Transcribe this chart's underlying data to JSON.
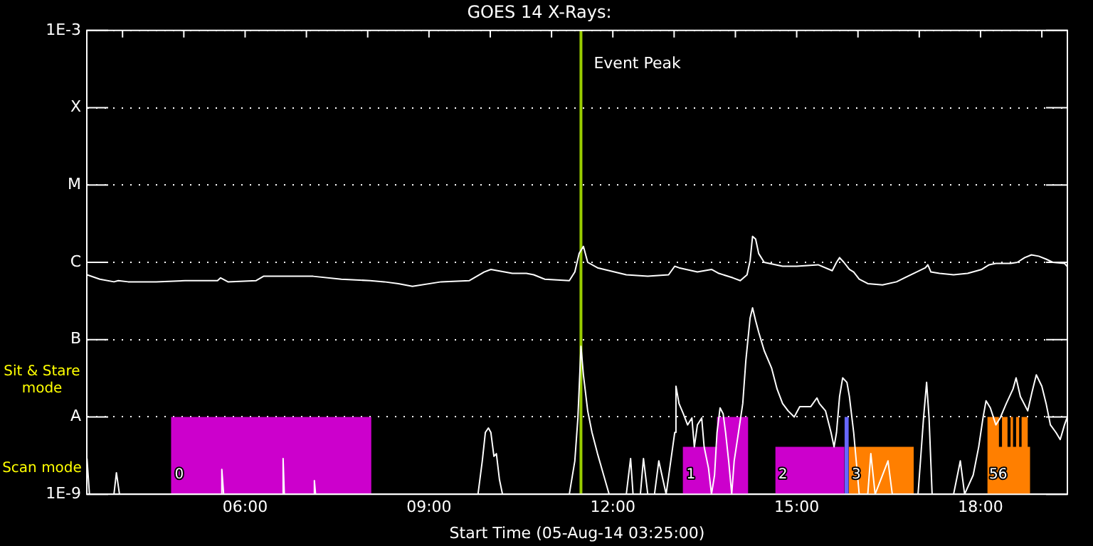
{
  "chart_data": {
    "type": "line",
    "title": "GOES 14 X-Rays:",
    "xlabel": "Start Time (05-Aug-14 03:25:00)",
    "xlim": [
      3.417,
      19.417
    ],
    "xticks": [
      {
        "value": 4,
        "label": null
      },
      {
        "value": 5,
        "label": null
      },
      {
        "value": 6,
        "label": "06:00"
      },
      {
        "value": 7,
        "label": null
      },
      {
        "value": 8,
        "label": null
      },
      {
        "value": 9,
        "label": "09:00"
      },
      {
        "value": 10,
        "label": null
      },
      {
        "value": 11,
        "label": null
      },
      {
        "value": 12,
        "label": "12:00"
      },
      {
        "value": 13,
        "label": null
      },
      {
        "value": 14,
        "label": null
      },
      {
        "value": 15,
        "label": "15:00"
      },
      {
        "value": 16,
        "label": null
      },
      {
        "value": 17,
        "label": null
      },
      {
        "value": 18,
        "label": "18:00"
      },
      {
        "value": 19,
        "label": null
      }
    ],
    "ylim": [
      1e-09,
      0.001
    ],
    "yticks": [
      {
        "value": 1e-09,
        "label": "1E-9"
      },
      {
        "value": 1e-08,
        "label": "A"
      },
      {
        "value": 1e-07,
        "label": "B"
      },
      {
        "value": 1e-06,
        "label": "C"
      },
      {
        "value": 1e-05,
        "label": "M"
      },
      {
        "value": 0.0001,
        "label": "X"
      },
      {
        "value": 0.001,
        "label": "1E-3"
      }
    ],
    "log": "y",
    "grid": "y",
    "ref_lines": [
      {
        "axis": "x",
        "value": 11.48,
        "label": "Event Peak",
        "color": "#99cc00"
      }
    ],
    "annotations": [
      "Sit & Stare mode",
      "Scan mode",
      {
        "text": "0",
        "x": 4.85,
        "y": 1.8e-09
      },
      {
        "text": "1",
        "x": 13.2,
        "y": 1.8e-09
      },
      {
        "text": "2",
        "x": 14.7,
        "y": 1.8e-09
      },
      {
        "text": "3",
        "x": 15.9,
        "y": 1.8e-09
      },
      {
        "text": "56",
        "x": 18.14,
        "y": 1.8e-09
      }
    ],
    "series": [
      {
        "type": "area",
        "color": "#cc00cc",
        "x": [
          4.79,
          8.06
        ],
        "values": [
          1e-08,
          1e-08
        ]
      },
      {
        "type": "area",
        "color": "#cc00cc",
        "x": [
          13.14,
          13.7,
          13.7,
          14.21
        ],
        "values": [
          4.1e-09,
          4.1e-09,
          1e-08,
          1e-08
        ]
      },
      {
        "type": "area",
        "color": "#cc00cc",
        "x": [
          14.65,
          15.78
        ],
        "values": [
          4.1e-09,
          4.1e-09
        ]
      },
      {
        "type": "area",
        "color": "#6666ff",
        "x": [
          15.78,
          15.85
        ],
        "values": [
          1e-08,
          1e-08
        ]
      },
      {
        "type": "area",
        "color": "#ff7f00",
        "x": [
          15.85,
          16.91
        ],
        "values": [
          4.1e-09,
          4.1e-09
        ]
      },
      {
        "type": "area",
        "color": "#ff7f00",
        "x": [
          18.11,
          18.3,
          18.3,
          18.35,
          18.35,
          18.44,
          18.44,
          18.49,
          18.49,
          18.53,
          18.53,
          18.58,
          18.58,
          18.63,
          18.63,
          18.67,
          18.67,
          18.77,
          18.77,
          18.81
        ],
        "values": [
          1e-08,
          1e-08,
          4.1e-09,
          4.1e-09,
          1e-08,
          1e-08,
          4.1e-09,
          4.1e-09,
          1e-08,
          1e-08,
          4.1e-09,
          4.1e-09,
          1e-08,
          1e-08,
          4.1e-09,
          4.1e-09,
          1e-08,
          1e-08,
          4.1e-09,
          4.1e-09
        ]
      },
      {
        "type": "line",
        "color": "#ffffff",
        "x": [
          3.42,
          3.63,
          3.86,
          3.93,
          4.09,
          4.55,
          5.02,
          5.55,
          5.6,
          5.72,
          6.18,
          6.3,
          6.64,
          7.11,
          7.57,
          8.04,
          8.27,
          8.5,
          8.73,
          9.2,
          9.66,
          9.9,
          10.01,
          10.36,
          10.59,
          10.71,
          10.89,
          11.29,
          11.38,
          11.45,
          11.52,
          11.59,
          11.75,
          12.22,
          12.57,
          12.91,
          13.01,
          13.08,
          13.38,
          13.61,
          13.73,
          13.96,
          14.08,
          14.19,
          14.24,
          14.28,
          14.33,
          14.38,
          14.47,
          14.77,
          15.0,
          15.35,
          15.58,
          15.65,
          15.7,
          15.77,
          15.86,
          15.93,
          16.02,
          16.16,
          16.4,
          16.63,
          16.86,
          17.1,
          17.14,
          17.19,
          17.33,
          17.56,
          17.79,
          18.02,
          18.14,
          18.25,
          18.49,
          18.6,
          18.72,
          18.83,
          18.95,
          19.07,
          19.18,
          19.37,
          19.41
        ],
        "values": [
          6.9e-07,
          6.05e-07,
          5.6e-07,
          5.8e-07,
          5.6e-07,
          5.6e-07,
          5.8e-07,
          5.8e-07,
          6.3e-07,
          5.6e-07,
          5.8e-07,
          6.6e-07,
          6.6e-07,
          6.6e-07,
          6.05e-07,
          5.8e-07,
          5.6e-07,
          5.3e-07,
          4.9e-07,
          5.6e-07,
          5.8e-07,
          7.5e-07,
          8.1e-07,
          7.2e-07,
          7.2e-07,
          6.9e-07,
          6.05e-07,
          5.8e-07,
          7.5e-07,
          1.3e-06,
          1.61e-06,
          1e-06,
          8.5e-07,
          6.9e-07,
          6.6e-07,
          6.9e-07,
          8.9e-07,
          8.5e-07,
          7.5e-07,
          8.1e-07,
          7.2e-07,
          6.3e-07,
          5.8e-07,
          6.9e-07,
          1.05e-06,
          2.17e-06,
          2e-06,
          1.3e-06,
          1e-06,
          8.9e-07,
          8.9e-07,
          9.3e-07,
          7.8e-07,
          1e-06,
          1.15e-06,
          1e-06,
          8.1e-07,
          7.5e-07,
          6.05e-07,
          5.3e-07,
          5.1e-07,
          5.6e-07,
          6.9e-07,
          8.5e-07,
          9.3e-07,
          7.5e-07,
          7.2e-07,
          6.9e-07,
          7.2e-07,
          8.1e-07,
          9.3e-07,
          9.7e-07,
          9.7e-07,
          1e-06,
          1.15e-06,
          1.25e-06,
          1.2e-06,
          1.1e-06,
          1e-06,
          9.7e-07,
          8.9e-07
        ]
      },
      {
        "type": "line",
        "color": "#ffffff",
        "x": [
          3.42,
          3.46,
          3.86,
          3.9,
          3.95,
          5.6,
          5.62,
          5.65,
          6.6,
          6.62,
          6.64,
          7.11,
          7.13,
          7.15,
          9.8,
          9.87,
          9.92,
          9.97,
          10.01,
          10.06,
          10.1,
          10.15,
          10.2,
          11.29,
          11.38,
          11.43,
          11.48,
          11.52,
          11.59,
          11.66,
          11.75,
          11.85,
          11.94,
          12.22,
          12.29,
          12.33,
          12.45,
          12.5,
          12.57,
          12.68,
          12.75,
          12.87,
          13.01,
          13.03,
          13.08,
          13.15,
          13.22,
          13.29,
          13.33,
          13.38,
          13.45,
          13.49,
          13.56,
          13.61,
          13.66,
          13.7,
          13.75,
          13.8,
          13.84,
          13.89,
          13.94,
          13.98,
          14.05,
          14.12,
          14.17,
          14.24,
          14.28,
          14.33,
          14.38,
          14.47,
          14.59,
          14.68,
          14.77,
          14.86,
          14.96,
          15.05,
          15.14,
          15.23,
          15.33,
          15.37,
          15.47,
          15.56,
          15.61,
          15.65,
          15.7,
          15.75,
          15.82,
          15.86,
          15.93,
          16.02,
          16.16,
          16.21,
          16.28,
          16.49,
          16.56,
          16.98,
          17.02,
          17.07,
          17.12,
          17.16,
          17.21,
          17.56,
          17.67,
          17.74,
          17.88,
          17.97,
          18.04,
          18.09,
          18.16,
          18.25,
          18.32,
          18.42,
          18.53,
          18.58,
          18.65,
          18.77,
          18.84,
          18.91,
          19.0,
          19.07,
          19.14,
          19.23,
          19.3,
          19.37,
          19.41
        ],
        "values": [
          2.9e-09,
          1e-09,
          1e-09,
          1.9e-09,
          1e-09,
          1e-09,
          2.1e-09,
          1e-09,
          1e-09,
          2.9e-09,
          1e-09,
          1e-09,
          1.5e-09,
          1e-09,
          1e-09,
          2.7e-09,
          6.3e-09,
          7.2e-09,
          6.3e-09,
          3.1e-09,
          3.35e-09,
          1.55e-09,
          1e-09,
          1e-09,
          2.7e-09,
          9.7e-09,
          8.2e-08,
          3.5e-08,
          1.2e-08,
          6.3e-09,
          3.35e-09,
          1.77e-09,
          1e-09,
          1e-09,
          2.9e-09,
          1e-09,
          1e-09,
          2.9e-09,
          1e-09,
          1e-09,
          2.7e-09,
          1e-09,
          6.3e-09,
          2.5e-08,
          1.49e-08,
          1.1e-08,
          7.9e-09,
          9.7e-09,
          4.1e-09,
          7.9e-09,
          9.7e-09,
          4.1e-09,
          2.2e-09,
          1e-09,
          1.77e-09,
          6.3e-09,
          1.31e-08,
          1.1e-08,
          6.3e-09,
          2.7e-09,
          1e-09,
          2.7e-09,
          6.3e-09,
          1.49e-08,
          5.3e-08,
          1.91e-07,
          2.58e-07,
          1.76e-07,
          1.25e-07,
          7.2e-08,
          4.3e-08,
          2.3e-08,
          1.49e-08,
          1.2e-08,
          1e-08,
          1.36e-08,
          1.36e-08,
          1.36e-08,
          1.76e-08,
          1.49e-08,
          1.2e-08,
          6.3e-09,
          4.1e-09,
          6.3e-09,
          1.84e-08,
          3.2e-08,
          2.8e-08,
          1.84e-08,
          6.3e-09,
          1e-09,
          1e-09,
          3.35e-09,
          1e-09,
          2.7e-09,
          1e-09,
          1e-09,
          2.7e-09,
          9.7e-09,
          2.8e-08,
          9.7e-09,
          1e-09,
          1e-09,
          2.7e-09,
          1e-09,
          1.77e-09,
          4.1e-09,
          9.7e-09,
          1.62e-08,
          1.31e-08,
          7.9e-09,
          9.7e-09,
          1.49e-08,
          2.3e-08,
          3.2e-08,
          1.84e-08,
          1.2e-08,
          2.1e-08,
          3.5e-08,
          2.5e-08,
          1.49e-08,
          7.9e-09,
          6.3e-09,
          5.1e-09,
          7.9e-09,
          9.7e-09
        ]
      }
    ]
  }
}
